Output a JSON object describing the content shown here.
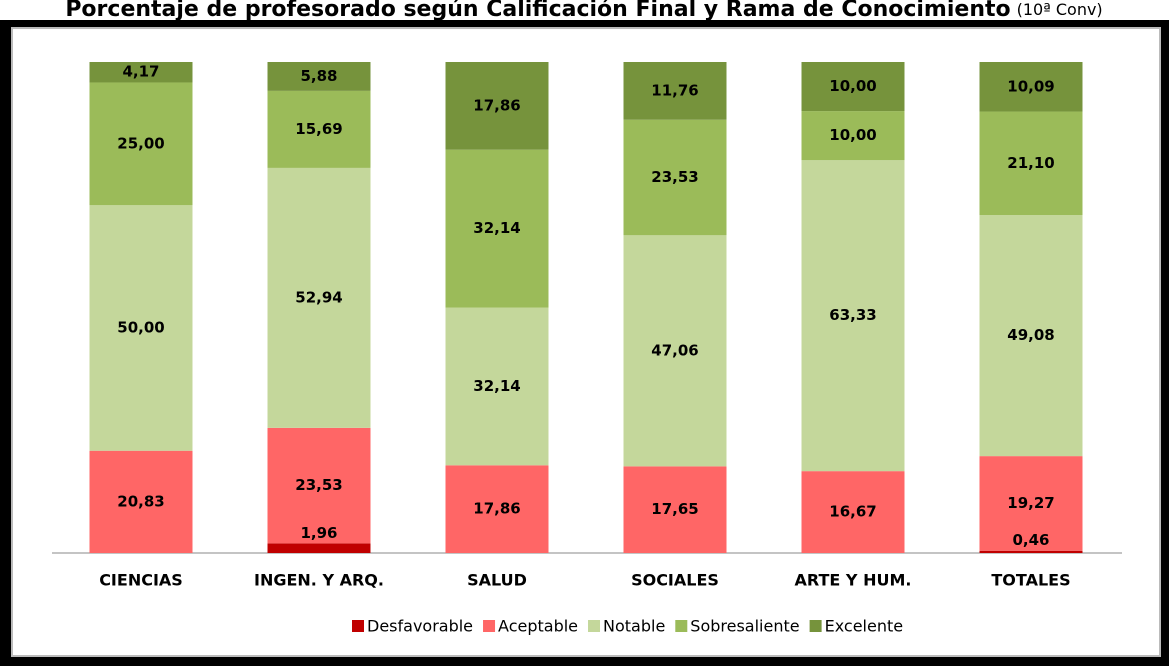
{
  "chart_data": {
    "type": "stacked_bar",
    "title": "Porcentaje de profesorado según Calificación Final y Rama de Conocimiento",
    "subtitle": "(10ª Conv)",
    "categories": [
      "CIENCIAS",
      "INGEN. Y ARQ.",
      "SALUD",
      "SOCIALES",
      "ARTE Y HUM.",
      "TOTALES"
    ],
    "ylim": [
      0,
      100
    ],
    "series": [
      {
        "name": "Desfavorable",
        "color": "#c00000",
        "values": [
          0,
          1.96,
          0,
          0,
          0,
          0.46
        ],
        "value_labels": [
          null,
          "1,96",
          null,
          null,
          null,
          "0,46"
        ]
      },
      {
        "name": "Aceptable",
        "color": "#ff6666",
        "values": [
          20.83,
          23.53,
          17.86,
          17.65,
          16.67,
          19.27
        ],
        "value_labels": [
          "20,83",
          "23,53",
          "17,86",
          "17,65",
          "16,67",
          "19,27"
        ]
      },
      {
        "name": "Notable",
        "color": "#c4d79b",
        "values": [
          50.0,
          52.94,
          32.14,
          47.06,
          63.33,
          49.08
        ],
        "value_labels": [
          "50,00",
          "52,94",
          "32,14",
          "47,06",
          "63,33",
          "49,08"
        ]
      },
      {
        "name": "Sobresaliente",
        "color": "#9bbb59",
        "values": [
          25.0,
          15.69,
          32.14,
          23.53,
          10.0,
          21.1
        ],
        "value_labels": [
          "25,00",
          "15,69",
          "32,14",
          "23,53",
          "10,00",
          "21,10"
        ]
      },
      {
        "name": "Excelente",
        "color": "#76933c",
        "values": [
          4.17,
          5.88,
          17.86,
          11.76,
          10.0,
          10.09
        ],
        "value_labels": [
          "4,17",
          "5,88",
          "17,86",
          "11,76",
          "10,00",
          "10,09"
        ]
      }
    ]
  }
}
